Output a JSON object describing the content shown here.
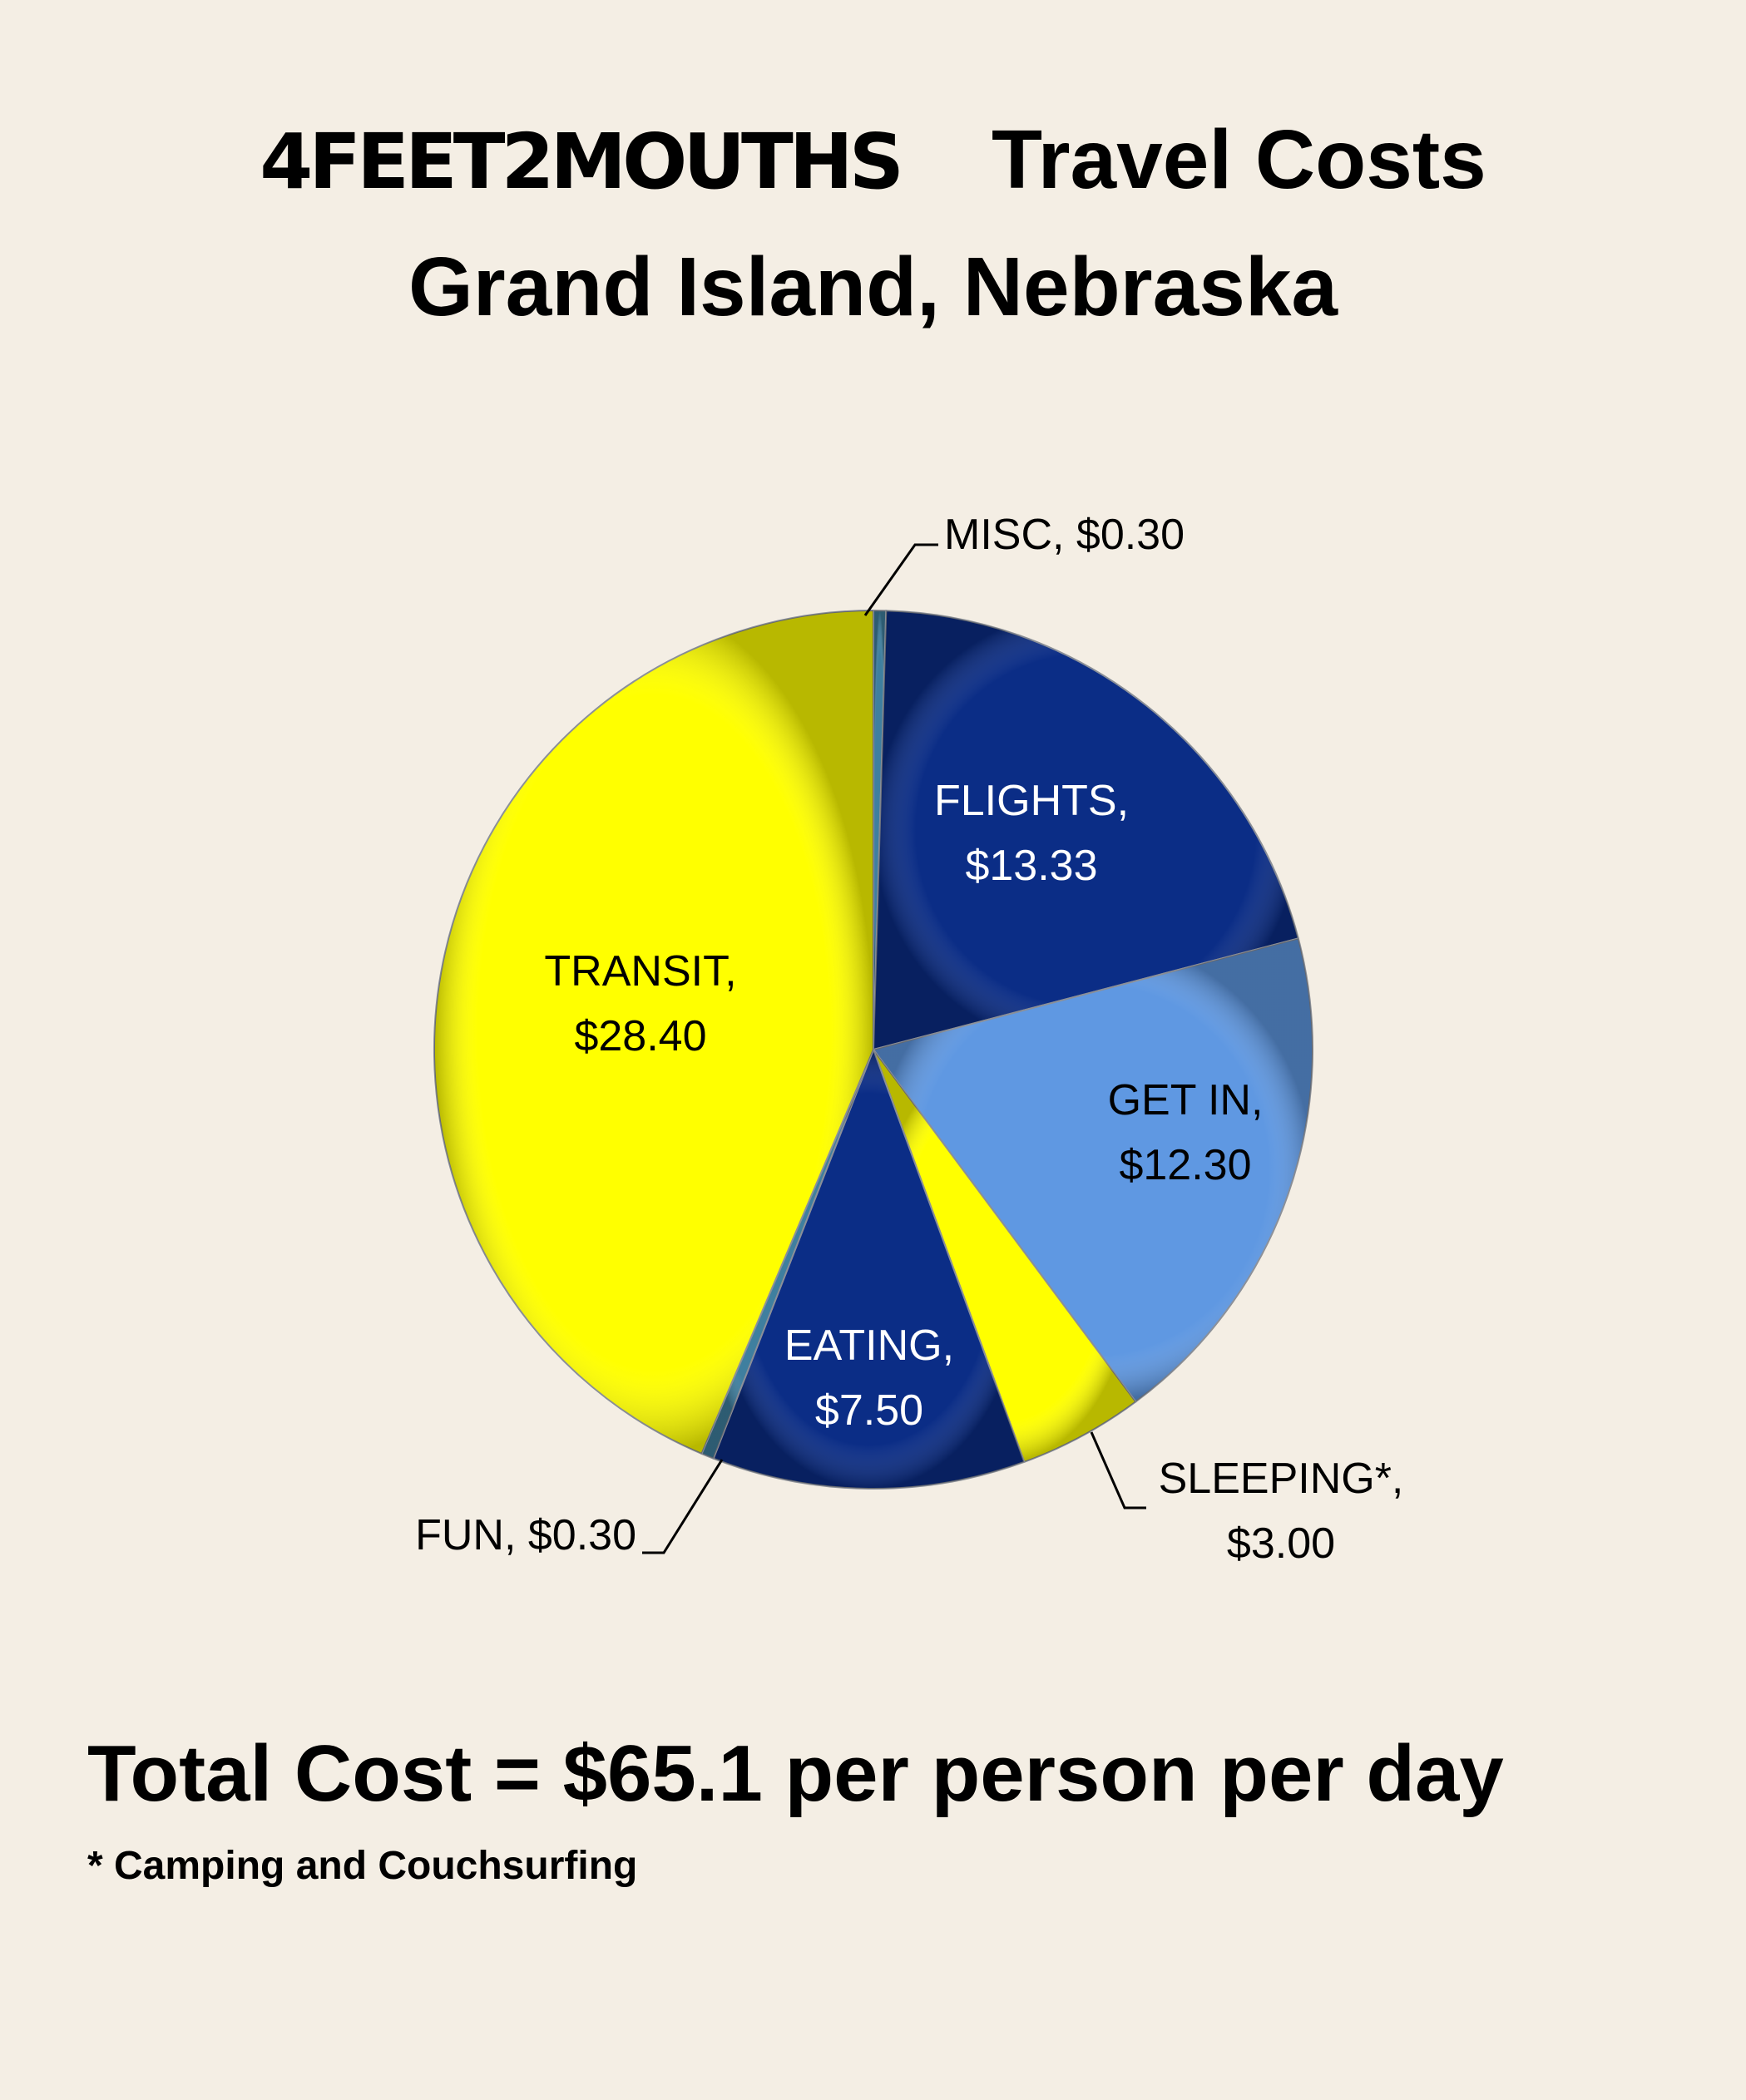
{
  "header": {
    "brand": "4FEET2MOUTHS",
    "title": "Travel Costs",
    "subtitle": "Grand Island, Nebraska"
  },
  "chart_data": {
    "type": "pie",
    "slices": [
      {
        "label": "MISC, $0.30",
        "category": "MISC",
        "value": 0.3,
        "color": "#3f7f9f"
      },
      {
        "label": "FLIGHTS, $13.33",
        "category": "FLIGHTS",
        "value": 13.33,
        "color": "#0b2d86"
      },
      {
        "label": "GET IN, $12.30",
        "category": "GET IN",
        "value": 12.3,
        "color": "#5f98e2"
      },
      {
        "label": "SLEEPING*, $3.00",
        "category": "SLEEPING*",
        "value": 3.0,
        "color": "#ffff00"
      },
      {
        "label": "EATING, $7.50",
        "category": "EATING",
        "value": 7.5,
        "color": "#0b2d86"
      },
      {
        "label": "FUN, $0.30",
        "category": "FUN",
        "value": 0.3,
        "color": "#3f7f9f"
      },
      {
        "label": "TRANSIT, $28.40",
        "category": "TRANSIT",
        "value": 28.4,
        "color": "#ffff00"
      }
    ],
    "label_lines": {
      "MISC": [
        "MISC, $0.30"
      ],
      "FLIGHTS": [
        "FLIGHTS,",
        "$13.33"
      ],
      "GET IN": [
        "GET IN,",
        "$12.30"
      ],
      "SLEEPING*": [
        "SLEEPING*,",
        "$3.00"
      ],
      "EATING": [
        "EATING,",
        "$7.50"
      ],
      "FUN": [
        "FUN, $0.30"
      ],
      "TRANSIT": [
        "TRANSIT,",
        "$28.40"
      ]
    },
    "label_colors": {
      "MISC": "#000000",
      "FLIGHTS": "#ffffff",
      "GET IN": "#000000",
      "SLEEPING*": "#000000",
      "EATING": "#ffffff",
      "FUN": "#000000",
      "TRANSIT": "#000000"
    }
  },
  "summary": {
    "total": "Total Cost = $65.1 per person per day",
    "footnote": "* Camping and Couchsurfing"
  }
}
